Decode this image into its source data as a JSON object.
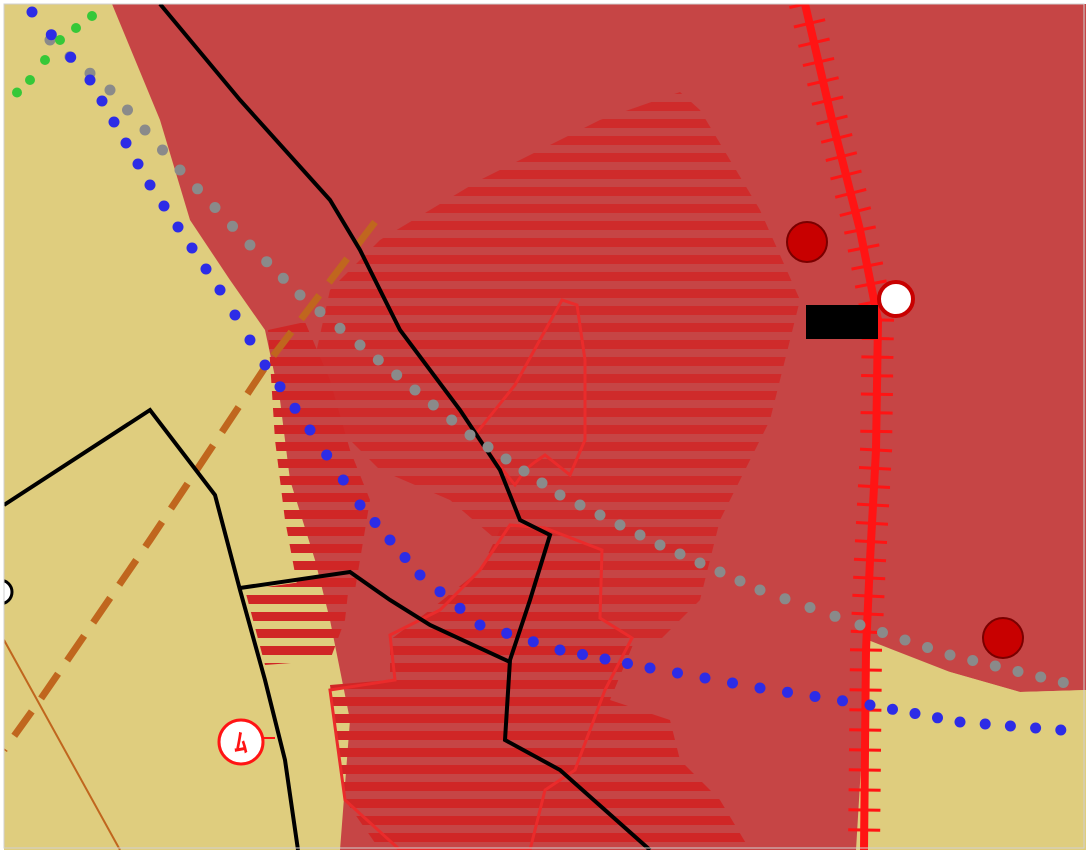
{
  "map": {
    "colors": {
      "background": "#ffffff",
      "land": "#dfcd7e",
      "zone_red": "#c64545",
      "hatch_red": "#d02626",
      "parcel_border": "#000000",
      "outline_red": "#ea2b2b",
      "railway": "#ff1414",
      "dashed_route": "#c0661e",
      "thin_line": "#c0661e",
      "dots_blue": "#2d2ce6",
      "dots_grey": "#8a8a8a",
      "dots_green": "#36c838",
      "marker_red": "#c80000",
      "marker_white": "#ffffff",
      "building": "#000000"
    },
    "symbols": [
      {
        "name": "symbol-badge",
        "text": "ﾑ"
      }
    ]
  }
}
